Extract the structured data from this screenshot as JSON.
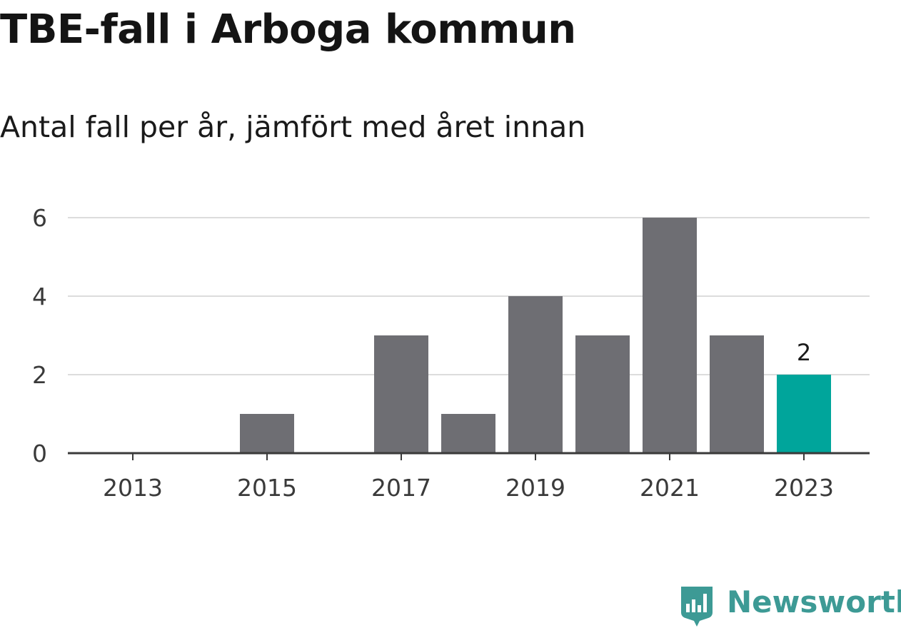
{
  "title": "TBE-fall i Arboga kommun",
  "subtitle": "Antal fall per år, jämfört med året innan",
  "colors": {
    "bar": "#6e6e73",
    "highlight": "#00a59b",
    "grid": "#dcdcdc",
    "axis": "#3a3a3a",
    "brand": "#3d9a95"
  },
  "logo": {
    "text": "Newsworthy",
    "icon": "bar-chart-badge-icon"
  },
  "chart_data": {
    "type": "bar",
    "categories": [
      2013,
      2014,
      2015,
      2016,
      2017,
      2018,
      2019,
      2020,
      2021,
      2022,
      2023
    ],
    "values": [
      0,
      0,
      1,
      0,
      3,
      1,
      4,
      3,
      6,
      3,
      2
    ],
    "highlight_category": 2023,
    "x_tick_labels": [
      "2013",
      "2015",
      "2017",
      "2019",
      "2021",
      "2023"
    ],
    "y_ticks": [
      0,
      2,
      4,
      6
    ],
    "ylim": [
      0,
      6
    ],
    "data_labels": [
      {
        "category": 2023,
        "text": "2"
      }
    ],
    "grid": true,
    "xlabel": "",
    "ylabel": ""
  }
}
